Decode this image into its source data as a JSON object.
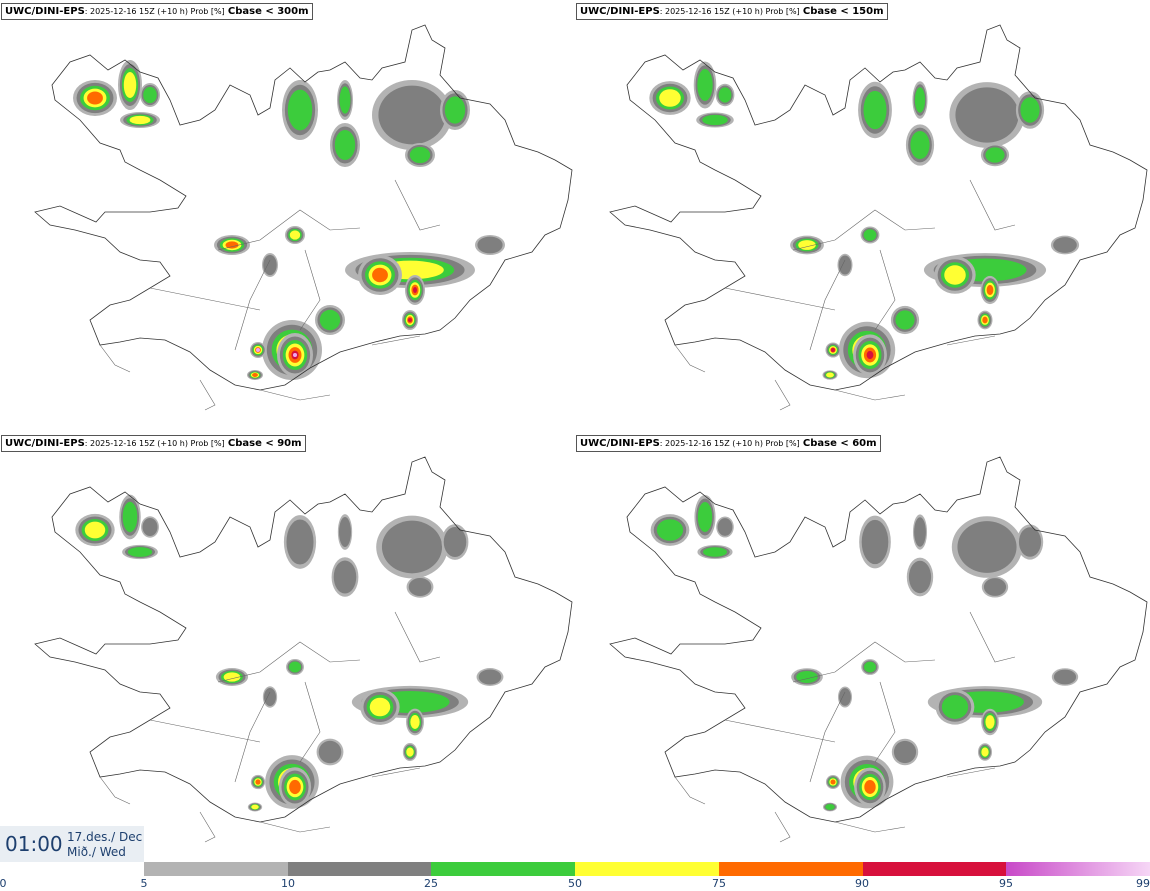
{
  "panels": [
    {
      "model": "UWC/DINI-EPS",
      "meta": ": 2025-12-16 15Z (+10 h) Prob [%]",
      "var": "Cbase < 300m",
      "level": 1.0
    },
    {
      "model": "UWC/DINI-EPS",
      "meta": ": 2025-12-16 15Z (+10 h) Prob [%]",
      "var": "Cbase < 150m",
      "level": 0.8
    },
    {
      "model": "UWC/DINI-EPS",
      "meta": ": 2025-12-16 15Z (+10 h) Prob [%]",
      "var": "Cbase < 90m",
      "level": 0.65
    },
    {
      "model": "UWC/DINI-EPS",
      "meta": ": 2025-12-16 15Z (+10 h) Prob [%]",
      "var": "Cbase < 60m",
      "level": 0.6
    }
  ],
  "time": {
    "clock": "01:00",
    "date_line1": "17.des./ Dec",
    "date_line2": "Mið./ Wed"
  },
  "colorbar": {
    "ticks": [
      "0",
      "5",
      "10",
      "25",
      "50",
      "75",
      "90",
      "95",
      "99"
    ],
    "colors": [
      "#b3b3b3",
      "#7f7f7f",
      "#3ccc3c",
      "#ffff33",
      "#ff6a00",
      "#d7103c",
      "#c849c8"
    ]
  }
}
